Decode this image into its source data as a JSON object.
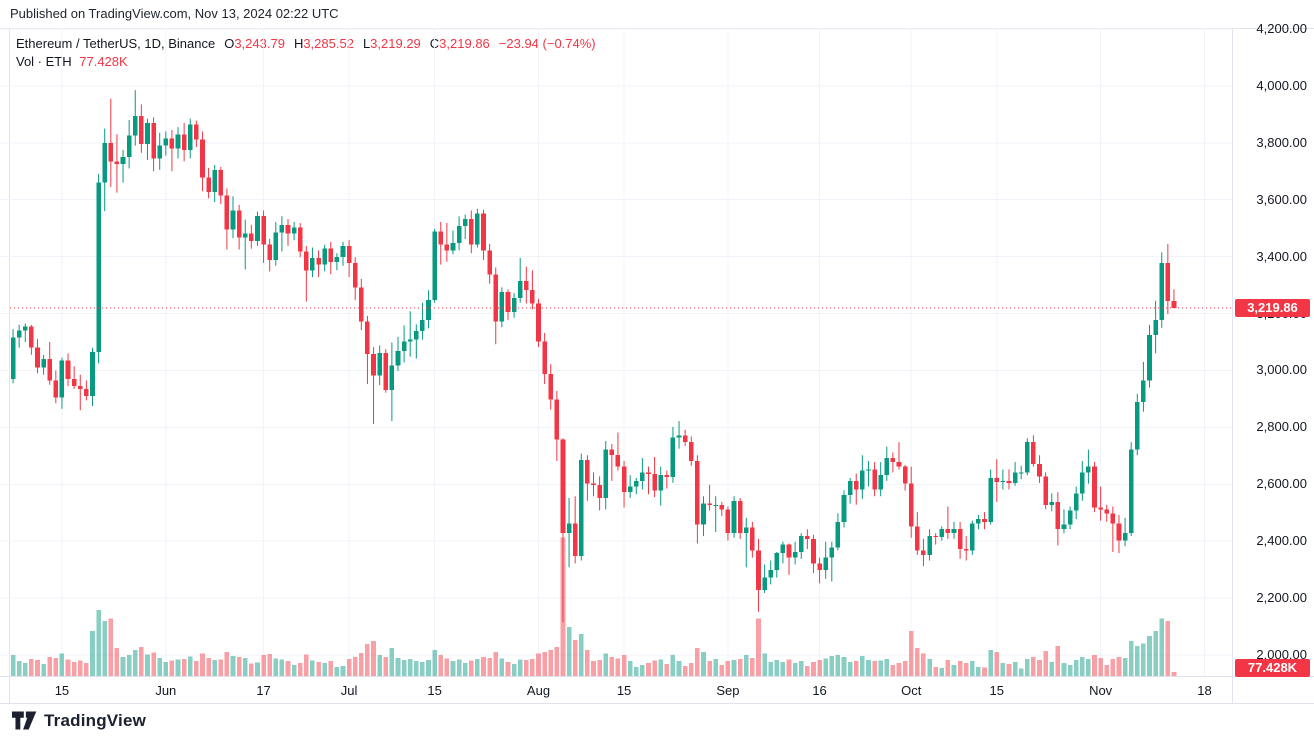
{
  "published_line": "Published on TradingView.com, Nov 13, 2024 02:22 UTC",
  "watermark": "TradingView",
  "legend": {
    "symbol_title": "Ethereum / TetherUS, 1D, Binance",
    "ohlc": [
      {
        "label": "O",
        "value": "3,243.79"
      },
      {
        "label": "H",
        "value": "3,285.52"
      },
      {
        "label": "L",
        "value": "3,219.29"
      },
      {
        "label": "C",
        "value": "3,219.86"
      }
    ],
    "change": "−23.94 (−0.74%)",
    "volume_label": "Vol · ETH",
    "volume_value": "77.428K"
  },
  "price_axis": {
    "ticks": [
      {
        "label": "4,200.00",
        "value": 4200
      },
      {
        "label": "4,000.00",
        "value": 4000
      },
      {
        "label": "3,800.00",
        "value": 3800
      },
      {
        "label": "3,600.00",
        "value": 3600
      },
      {
        "label": "3,400.00",
        "value": 3400
      },
      {
        "label": "3,200.00",
        "value": 3200
      },
      {
        "label": "3,000.00",
        "value": 3000
      },
      {
        "label": "2,800.00",
        "value": 2800
      },
      {
        "label": "2,600.00",
        "value": 2600
      },
      {
        "label": "2,400.00",
        "value": 2400
      },
      {
        "label": "2,200.00",
        "value": 2200
      },
      {
        "label": "2,000.00",
        "value": 2000
      }
    ],
    "last_price_badge": "3,219.86",
    "volume_badge": "77.428K"
  },
  "time_axis": {
    "ticks": [
      {
        "label": "15",
        "i": 8
      },
      {
        "label": "Jun",
        "i": 25
      },
      {
        "label": "17",
        "i": 41
      },
      {
        "label": "Jul",
        "i": 55
      },
      {
        "label": "15",
        "i": 69
      },
      {
        "label": "Aug",
        "i": 86
      },
      {
        "label": "15",
        "i": 100
      },
      {
        "label": "Sep",
        "i": 117
      },
      {
        "label": "16",
        "i": 132
      },
      {
        "label": "Oct",
        "i": 147
      },
      {
        "label": "15",
        "i": 161
      },
      {
        "label": "Nov",
        "i": 178
      },
      {
        "label": "18",
        "i": 195
      }
    ]
  },
  "colors": {
    "up": "#089981",
    "down": "#f23645",
    "vol_up": "rgba(8,153,129,0.48)",
    "vol_down": "rgba(242,54,69,0.48)",
    "grid": "#f0f3fa",
    "border": "#e0e3eb",
    "badge_bg": "#f23645",
    "text": "#131722",
    "value_red": "#f23645"
  },
  "chart_data": {
    "type": "candlestick+volume",
    "symbol": "Ethereum / TetherUS",
    "exchange": "Binance",
    "interval": "1D",
    "start_date": "2024-05-07",
    "end_date": "2024-11-13",
    "ylim": [
      2000,
      4200
    ],
    "last_price": 3219.86,
    "last_volume_k": 77.428,
    "total_slots": 200,
    "candle_format": [
      "open",
      "high",
      "low",
      "close",
      "volume_kETH"
    ],
    "candles": [
      [
        2970,
        3145,
        2955,
        3115,
        420
      ],
      [
        3115,
        3160,
        3080,
        3140,
        300
      ],
      [
        3140,
        3165,
        3100,
        3155,
        260
      ],
      [
        3155,
        3160,
        3055,
        3080,
        340
      ],
      [
        3080,
        3110,
        2990,
        3010,
        320
      ],
      [
        3010,
        3055,
        2985,
        3040,
        240
      ],
      [
        3040,
        3100,
        2950,
        2965,
        380
      ],
      [
        2965,
        3000,
        2885,
        2905,
        360
      ],
      [
        2905,
        3045,
        2865,
        3035,
        450
      ],
      [
        3035,
        3060,
        2945,
        2970,
        330
      ],
      [
        2970,
        3015,
        2935,
        2945,
        280
      ],
      [
        2945,
        2985,
        2860,
        2935,
        310
      ],
      [
        2935,
        2965,
        2895,
        2910,
        260
      ],
      [
        2910,
        3080,
        2875,
        3065,
        900
      ],
      [
        3065,
        3690,
        3025,
        3660,
        1320
      ],
      [
        3660,
        3850,
        3560,
        3800,
        1100
      ],
      [
        3800,
        3955,
        3645,
        3735,
        1150
      ],
      [
        3735,
        3830,
        3625,
        3725,
        560
      ],
      [
        3725,
        3775,
        3660,
        3750,
        380
      ],
      [
        3750,
        3880,
        3710,
        3825,
        420
      ],
      [
        3825,
        3985,
        3790,
        3895,
        520
      ],
      [
        3895,
        3935,
        3765,
        3795,
        580
      ],
      [
        3795,
        3885,
        3740,
        3870,
        430
      ],
      [
        3870,
        3890,
        3700,
        3745,
        470
      ],
      [
        3745,
        3835,
        3705,
        3790,
        360
      ],
      [
        3790,
        3840,
        3755,
        3815,
        280
      ],
      [
        3815,
        3845,
        3700,
        3780,
        310
      ],
      [
        3780,
        3855,
        3745,
        3830,
        330
      ],
      [
        3830,
        3870,
        3735,
        3775,
        340
      ],
      [
        3775,
        3885,
        3745,
        3865,
        390
      ],
      [
        3865,
        3878,
        3785,
        3812,
        300
      ],
      [
        3812,
        3840,
        3630,
        3678,
        450
      ],
      [
        3678,
        3712,
        3605,
        3628,
        360
      ],
      [
        3628,
        3722,
        3592,
        3705,
        320
      ],
      [
        3705,
        3715,
        3585,
        3615,
        330
      ],
      [
        3615,
        3640,
        3425,
        3495,
        480
      ],
      [
        3495,
        3612,
        3465,
        3562,
        400
      ],
      [
        3562,
        3582,
        3425,
        3468,
        380
      ],
      [
        3468,
        3530,
        3355,
        3482,
        360
      ],
      [
        3482,
        3512,
        3428,
        3455,
        250
      ],
      [
        3455,
        3558,
        3438,
        3542,
        270
      ],
      [
        3542,
        3562,
        3378,
        3442,
        420
      ],
      [
        3442,
        3462,
        3348,
        3388,
        440
      ],
      [
        3388,
        3522,
        3368,
        3485,
        350
      ],
      [
        3485,
        3542,
        3418,
        3512,
        330
      ],
      [
        3512,
        3532,
        3438,
        3482,
        300
      ],
      [
        3482,
        3522,
        3458,
        3502,
        220
      ],
      [
        3502,
        3518,
        3398,
        3418,
        260
      ],
      [
        3418,
        3438,
        3242,
        3352,
        430
      ],
      [
        3352,
        3432,
        3328,
        3395,
        310
      ],
      [
        3395,
        3422,
        3328,
        3372,
        280
      ],
      [
        3372,
        3442,
        3348,
        3428,
        260
      ],
      [
        3428,
        3452,
        3338,
        3382,
        300
      ],
      [
        3382,
        3412,
        3352,
        3398,
        180
      ],
      [
        3398,
        3452,
        3368,
        3438,
        200
      ],
      [
        3438,
        3458,
        3328,
        3378,
        340
      ],
      [
        3378,
        3398,
        3248,
        3292,
        380
      ],
      [
        3292,
        3322,
        3142,
        3172,
        460
      ],
      [
        3172,
        3192,
        2952,
        3058,
        640
      ],
      [
        3058,
        3082,
        2812,
        2982,
        700
      ],
      [
        2982,
        3088,
        2948,
        3062,
        420
      ],
      [
        3062,
        3075,
        2922,
        2932,
        380
      ],
      [
        2932,
        3098,
        2822,
        3018,
        560
      ],
      [
        3018,
        3118,
        2998,
        3068,
        360
      ],
      [
        3068,
        3158,
        3028,
        3102,
        320
      ],
      [
        3102,
        3208,
        3048,
        3108,
        340
      ],
      [
        3108,
        3162,
        3042,
        3138,
        300
      ],
      [
        3138,
        3238,
        3108,
        3178,
        280
      ],
      [
        3178,
        3282,
        3148,
        3248,
        320
      ],
      [
        3248,
        3498,
        3238,
        3488,
        520
      ],
      [
        3488,
        3522,
        3372,
        3442,
        420
      ],
      [
        3442,
        3518,
        3382,
        3422,
        350
      ],
      [
        3422,
        3492,
        3408,
        3448,
        300
      ],
      [
        3448,
        3542,
        3422,
        3508,
        330
      ],
      [
        3508,
        3548,
        3462,
        3532,
        260
      ],
      [
        3532,
        3562,
        3412,
        3442,
        310
      ],
      [
        3442,
        3568,
        3432,
        3552,
        340
      ],
      [
        3552,
        3565,
        3388,
        3422,
        380
      ],
      [
        3422,
        3445,
        3305,
        3338,
        360
      ],
      [
        3338,
        3362,
        3092,
        3172,
        480
      ],
      [
        3172,
        3292,
        3152,
        3275,
        350
      ],
      [
        3275,
        3285,
        3178,
        3205,
        280
      ],
      [
        3205,
        3272,
        3185,
        3255,
        240
      ],
      [
        3255,
        3395,
        3238,
        3315,
        330
      ],
      [
        3315,
        3365,
        3235,
        3282,
        320
      ],
      [
        3282,
        3352,
        3215,
        3235,
        340
      ],
      [
        3235,
        3252,
        3082,
        3102,
        450
      ],
      [
        3102,
        3132,
        2952,
        2988,
        480
      ],
      [
        2988,
        3022,
        2862,
        2898,
        520
      ],
      [
        2898,
        2928,
        2682,
        2758,
        580
      ],
      [
        2758,
        2762,
        2115,
        2428,
        2770
      ],
      [
        2428,
        2552,
        2308,
        2462,
        980
      ],
      [
        2462,
        2558,
        2322,
        2348,
        720
      ],
      [
        2348,
        2708,
        2332,
        2685,
        840
      ],
      [
        2685,
        2702,
        2542,
        2602,
        520
      ],
      [
        2602,
        2642,
        2558,
        2598,
        300
      ],
      [
        2598,
        2628,
        2508,
        2552,
        320
      ],
      [
        2552,
        2752,
        2512,
        2722,
        450
      ],
      [
        2722,
        2742,
        2612,
        2702,
        380
      ],
      [
        2702,
        2782,
        2648,
        2662,
        350
      ],
      [
        2662,
        2682,
        2518,
        2572,
        420
      ],
      [
        2572,
        2632,
        2552,
        2592,
        300
      ],
      [
        2592,
        2622,
        2565,
        2612,
        180
      ],
      [
        2612,
        2692,
        2582,
        2642,
        220
      ],
      [
        2642,
        2662,
        2565,
        2636,
        260
      ],
      [
        2636,
        2696,
        2555,
        2578,
        310
      ],
      [
        2578,
        2662,
        2525,
        2632,
        330
      ],
      [
        2632,
        2648,
        2585,
        2625,
        240
      ],
      [
        2625,
        2802,
        2605,
        2765,
        420
      ],
      [
        2765,
        2822,
        2725,
        2772,
        300
      ],
      [
        2772,
        2792,
        2735,
        2748,
        200
      ],
      [
        2748,
        2768,
        2665,
        2682,
        260
      ],
      [
        2682,
        2702,
        2392,
        2458,
        560
      ],
      [
        2458,
        2558,
        2418,
        2532,
        480
      ],
      [
        2532,
        2598,
        2508,
        2528,
        300
      ],
      [
        2528,
        2558,
        2432,
        2528,
        340
      ],
      [
        2528,
        2538,
        2488,
        2512,
        220
      ],
      [
        2512,
        2522,
        2402,
        2428,
        300
      ],
      [
        2428,
        2558,
        2412,
        2542,
        320
      ],
      [
        2542,
        2552,
        2408,
        2428,
        340
      ],
      [
        2428,
        2482,
        2308,
        2448,
        420
      ],
      [
        2448,
        2468,
        2342,
        2368,
        360
      ],
      [
        2368,
        2408,
        2152,
        2228,
        1150
      ],
      [
        2228,
        2318,
        2218,
        2272,
        450
      ],
      [
        2272,
        2332,
        2248,
        2298,
        280
      ],
      [
        2298,
        2362,
        2272,
        2358,
        320
      ],
      [
        2358,
        2398,
        2322,
        2388,
        280
      ],
      [
        2388,
        2392,
        2282,
        2342,
        330
      ],
      [
        2342,
        2398,
        2318,
        2362,
        260
      ],
      [
        2362,
        2428,
        2338,
        2418,
        300
      ],
      [
        2418,
        2442,
        2372,
        2408,
        200
      ],
      [
        2408,
        2422,
        2288,
        2322,
        280
      ],
      [
        2322,
        2342,
        2252,
        2298,
        320
      ],
      [
        2298,
        2398,
        2268,
        2342,
        350
      ],
      [
        2342,
        2398,
        2258,
        2378,
        400
      ],
      [
        2378,
        2498,
        2368,
        2468,
        420
      ],
      [
        2468,
        2578,
        2448,
        2562,
        380
      ],
      [
        2562,
        2622,
        2532,
        2612,
        280
      ],
      [
        2612,
        2638,
        2528,
        2582,
        300
      ],
      [
        2582,
        2702,
        2548,
        2648,
        400
      ],
      [
        2648,
        2682,
        2592,
        2652,
        320
      ],
      [
        2652,
        2678,
        2558,
        2582,
        300
      ],
      [
        2582,
        2678,
        2558,
        2632,
        310
      ],
      [
        2632,
        2732,
        2612,
        2692,
        340
      ],
      [
        2692,
        2712,
        2642,
        2678,
        220
      ],
      [
        2678,
        2748,
        2652,
        2662,
        260
      ],
      [
        2662,
        2668,
        2578,
        2602,
        300
      ],
      [
        2602,
        2662,
        2412,
        2452,
        900
      ],
      [
        2452,
        2502,
        2352,
        2368,
        560
      ],
      [
        2368,
        2408,
        2312,
        2352,
        450
      ],
      [
        2352,
        2442,
        2332,
        2418,
        340
      ],
      [
        2418,
        2428,
        2388,
        2415,
        180
      ],
      [
        2415,
        2452,
        2402,
        2442,
        160
      ],
      [
        2442,
        2522,
        2408,
        2428,
        320
      ],
      [
        2428,
        2468,
        2408,
        2442,
        220
      ],
      [
        2442,
        2468,
        2338,
        2372,
        300
      ],
      [
        2372,
        2418,
        2332,
        2368,
        260
      ],
      [
        2368,
        2472,
        2352,
        2462,
        300
      ],
      [
        2462,
        2492,
        2442,
        2478,
        180
      ],
      [
        2478,
        2502,
        2442,
        2468,
        170
      ],
      [
        2468,
        2652,
        2458,
        2622,
        520
      ],
      [
        2622,
        2688,
        2538,
        2608,
        480
      ],
      [
        2608,
        2652,
        2582,
        2612,
        260
      ],
      [
        2612,
        2652,
        2582,
        2605,
        240
      ],
      [
        2605,
        2678,
        2595,
        2642,
        280
      ],
      [
        2642,
        2665,
        2618,
        2642,
        150
      ],
      [
        2642,
        2762,
        2632,
        2748,
        340
      ],
      [
        2748,
        2772,
        2662,
        2672,
        380
      ],
      [
        2672,
        2702,
        2605,
        2628,
        320
      ],
      [
        2628,
        2642,
        2512,
        2528,
        500
      ],
      [
        2528,
        2568,
        2505,
        2538,
        280
      ],
      [
        2538,
        2572,
        2385,
        2442,
        600
      ],
      [
        2442,
        2512,
        2428,
        2458,
        260
      ],
      [
        2458,
        2522,
        2442,
        2508,
        220
      ],
      [
        2508,
        2592,
        2478,
        2568,
        320
      ],
      [
        2568,
        2682,
        2542,
        2642,
        380
      ],
      [
        2642,
        2722,
        2602,
        2662,
        340
      ],
      [
        2662,
        2678,
        2502,
        2518,
        420
      ],
      [
        2518,
        2592,
        2472,
        2512,
        360
      ],
      [
        2512,
        2528,
        2468,
        2498,
        220
      ],
      [
        2498,
        2522,
        2362,
        2462,
        340
      ],
      [
        2462,
        2492,
        2358,
        2402,
        380
      ],
      [
        2402,
        2482,
        2382,
        2428,
        360
      ],
      [
        2428,
        2748,
        2418,
        2722,
        700
      ],
      [
        2722,
        2918,
        2702,
        2890,
        600
      ],
      [
        2890,
        3030,
        2855,
        2965,
        650
      ],
      [
        2965,
        3160,
        2940,
        3125,
        800
      ],
      [
        3125,
        3245,
        3060,
        3178,
        900
      ],
      [
        3178,
        3415,
        3150,
        3377,
        1150
      ],
      [
        3377,
        3444,
        3198,
        3244,
        1100
      ],
      [
        3243.79,
        3285.52,
        3219.29,
        3219.86,
        77.428
      ]
    ]
  }
}
